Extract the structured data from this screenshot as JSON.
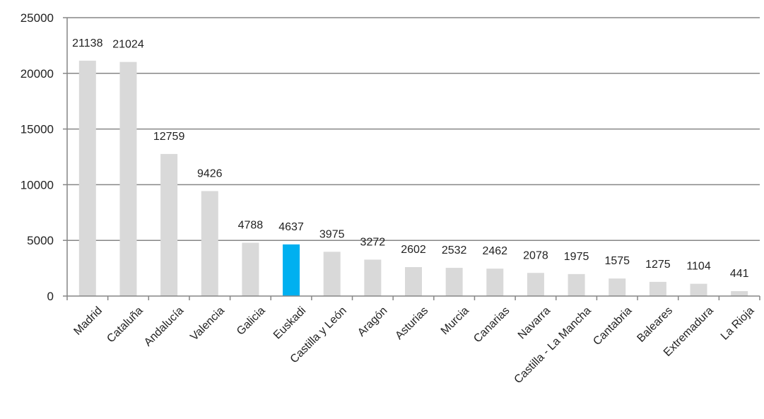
{
  "chart_data": {
    "type": "bar",
    "title": "",
    "xlabel": "",
    "ylabel": "",
    "ylim": [
      0,
      25000
    ],
    "yticks": [
      "0",
      "5000",
      "10000",
      "15000",
      "20000",
      "25000"
    ],
    "grid": true,
    "legend": "none",
    "categories": [
      "Madrid",
      "Cataluña",
      "Andalucía",
      "Valencia",
      "Galicia",
      "Euskadi",
      "Castilla y León",
      "Aragón",
      "Asturias",
      "Murcia",
      "Canarias",
      "Navarra",
      "Castilla - La Mancha",
      "Cantabria",
      "Baleares",
      "Extremadura",
      "La Rioja"
    ],
    "values": [
      21138,
      21024,
      12759,
      9426,
      4788,
      4637,
      3975,
      3272,
      2602,
      2532,
      2462,
      2078,
      1975,
      1575,
      1275,
      1104,
      441
    ],
    "highlight": "Euskadi",
    "colors": {
      "bar": "#d9d9d9",
      "highlight": "#00b0f0",
      "grid": "#868686",
      "axis": "#868686",
      "text": "#222222"
    }
  }
}
